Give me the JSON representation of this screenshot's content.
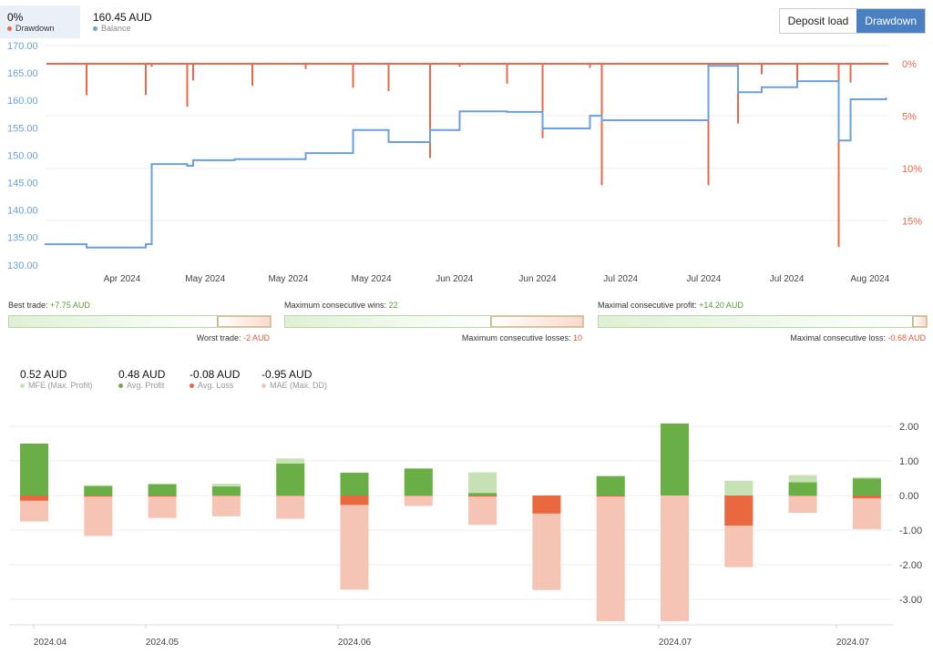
{
  "header": {
    "drawdown_value": "0%",
    "drawdown_label": "Drawdown",
    "balance_value": "160.45 AUD",
    "balance_label": "Balance",
    "buttons": [
      {
        "label": "Deposit load",
        "active": false
      },
      {
        "label": "Drawdown",
        "active": true
      }
    ]
  },
  "colors": {
    "drawdown": "#e8694a",
    "balance": "#6a9fe0",
    "profit": "#6aaf45",
    "mfe": "#c6e2b5",
    "loss": "#e8693f",
    "mae": "#f5c4b5",
    "accent": "#4a7fc1"
  },
  "stats": [
    {
      "top_label": "Best trade:",
      "top_value": "+7.75 AUD",
      "bottom_label": "Worst trade:",
      "bottom_value": "-2 AUD",
      "pos": 7.75,
      "neg": 2
    },
    {
      "top_label": "Maximum consecutive wins:",
      "top_value": "22",
      "bottom_label": "Maximum consecutive losses:",
      "bottom_value": "10",
      "pos": 22,
      "neg": 10
    },
    {
      "top_label": "Maximal consecutive profit:",
      "top_value": "+14.20 AUD",
      "bottom_label": "Maximal consecutive loss:",
      "bottom_value": "-0.68 AUD",
      "pos": 14.2,
      "neg": 0.68
    }
  ],
  "metrics": [
    {
      "value": "0.52 AUD",
      "label": "MFE (Max. Profit)",
      "color": "#c6e2b5"
    },
    {
      "value": "0.48 AUD",
      "label": "Avg. Profit",
      "color": "#6aaf45"
    },
    {
      "value": "-0.08 AUD",
      "label": "Avg. Loss",
      "color": "#e8693f"
    },
    {
      "value": "-0.95 AUD",
      "label": "MAE (Max. DD)",
      "color": "#f5c4b5"
    }
  ],
  "chart_data": [
    {
      "type": "line",
      "ylim": [
        130,
        170
      ],
      "y_ticks": [
        "170.00",
        "165.00",
        "160.00",
        "155.00",
        "150.00",
        "145.00",
        "140.00",
        "135.00",
        "130.00"
      ],
      "y2_ticks": [
        "0%",
        "5%",
        "10%",
        "15%"
      ],
      "y2lim_percent": [
        0,
        19.5
      ],
      "x_ticks": [
        "Apr 2024",
        "May 2024",
        "May 2024",
        "May 2024",
        "Jun 2024",
        "Jun 2024",
        "Jul 2024",
        "Jul 2024",
        "Jul 2024",
        "Aug 2024"
      ],
      "series": [
        {
          "name": "Balance",
          "step": true,
          "points": [
            [
              "2024-03-19",
              133.8
            ],
            [
              "2024-03-26",
              133.2
            ],
            [
              "2024-04-05",
              133.8
            ],
            [
              "2024-04-06",
              148.4
            ],
            [
              "2024-04-12",
              148.1
            ],
            [
              "2024-04-13",
              149.1
            ],
            [
              "2024-04-20",
              149.3
            ],
            [
              "2024-05-02",
              150.4
            ],
            [
              "2024-05-10",
              154.6
            ],
            [
              "2024-05-16",
              152.4
            ],
            [
              "2024-05-23",
              154.6
            ],
            [
              "2024-05-28",
              158.0
            ],
            [
              "2024-06-05",
              157.9
            ],
            [
              "2024-06-11",
              154.9
            ],
            [
              "2024-06-19",
              157.2
            ],
            [
              "2024-06-21",
              156.4
            ],
            [
              "2024-07-09",
              166.3
            ],
            [
              "2024-07-14",
              161.5
            ],
            [
              "2024-07-18",
              162.4
            ],
            [
              "2024-07-24",
              163.5
            ],
            [
              "2024-07-31",
              152.7
            ],
            [
              "2024-08-02",
              160.2
            ],
            [
              "2024-08-08",
              160.45
            ]
          ]
        },
        {
          "name": "Drawdown",
          "unit": "%",
          "spikes": [
            [
              "2024-03-26",
              3.0
            ],
            [
              "2024-04-05",
              3.0
            ],
            [
              "2024-04-06",
              0.3
            ],
            [
              "2024-04-12",
              4.1
            ],
            [
              "2024-04-13",
              1.6
            ],
            [
              "2024-04-23",
              2.1
            ],
            [
              "2024-05-02",
              0.5
            ],
            [
              "2024-05-10",
              2.3
            ],
            [
              "2024-05-16",
              2.6
            ],
            [
              "2024-05-23",
              9.0
            ],
            [
              "2024-05-28",
              0.3
            ],
            [
              "2024-06-05",
              1.9
            ],
            [
              "2024-06-11",
              7.1
            ],
            [
              "2024-06-19",
              0.4
            ],
            [
              "2024-06-21",
              11.6
            ],
            [
              "2024-07-09",
              11.6
            ],
            [
              "2024-07-14",
              5.7
            ],
            [
              "2024-07-18",
              1.0
            ],
            [
              "2024-07-24",
              1.6
            ],
            [
              "2024-07-31",
              17.5
            ],
            [
              "2024-08-02",
              1.8
            ]
          ]
        }
      ]
    },
    {
      "type": "bar",
      "ylim": [
        -3.7,
        2.2
      ],
      "y_ticks": [
        "2.00",
        "1.00",
        "0.00",
        "-1.00",
        "-2.00",
        "-3.00"
      ],
      "x_ticks": [
        "2024.04",
        "2024.05",
        "2024.06",
        "2024.07",
        "2024.07"
      ],
      "series": [
        {
          "name": "MFE (Max. Profit)",
          "values": [
            1.5,
            0.3,
            0.33,
            0.34,
            1.07,
            0.66,
            0.78,
            0.67,
            0,
            0.56,
            2.08,
            0.43,
            0.59,
            0.53
          ]
        },
        {
          "name": "Avg. Profit",
          "values": [
            1.5,
            0.27,
            0.33,
            0.26,
            0.92,
            0.66,
            0.78,
            0.07,
            0,
            0.56,
            2.08,
            0,
            0.38,
            0.49
          ]
        },
        {
          "name": "Avg. Loss",
          "values": [
            -0.15,
            -0.03,
            -0.03,
            -0.01,
            -0.01,
            -0.27,
            -0.01,
            -0.03,
            -0.52,
            -0.03,
            0,
            -0.87,
            -0.01,
            -0.08
          ]
        },
        {
          "name": "MAE (Max. DD)",
          "values": [
            -0.75,
            -1.17,
            -0.65,
            -0.6,
            -0.67,
            -2.72,
            -0.3,
            -0.85,
            -2.73,
            -3.63,
            -3.63,
            -2.07,
            -0.5,
            -0.97
          ]
        }
      ]
    }
  ]
}
